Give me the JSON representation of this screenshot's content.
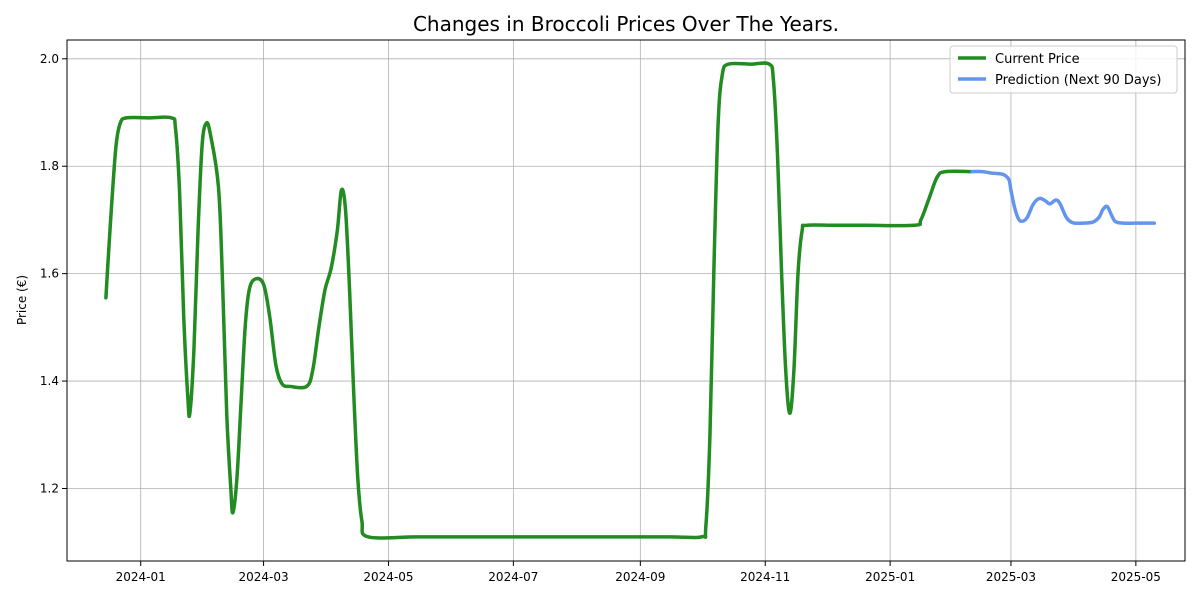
{
  "chart_data": {
    "type": "line",
    "title": "Changes in Broccoli Prices Over The Years.",
    "xlabel": "",
    "ylabel": "Price (€)",
    "xlim": [
      "2023-11-26",
      "2025-05-25"
    ],
    "ylim": [
      1.065,
      2.035
    ],
    "grid": true,
    "legend_position": "top-right",
    "x_ticks": [
      "2024-01",
      "2024-03",
      "2024-05",
      "2024-07",
      "2024-09",
      "2024-11",
      "2025-01",
      "2025-03",
      "2025-05"
    ],
    "y_ticks": [
      "1.2",
      "1.4",
      "1.6",
      "1.8",
      "2.0"
    ],
    "series": [
      {
        "name": "Current Price",
        "color": "#228B22",
        "points": [
          [
            "2023-12-15",
            1.555
          ],
          [
            "2023-12-16",
            1.62
          ],
          [
            "2023-12-18",
            1.74
          ],
          [
            "2023-12-20",
            1.84
          ],
          [
            "2023-12-22",
            1.88
          ],
          [
            "2023-12-25",
            1.89
          ],
          [
            "2024-01-05",
            1.89
          ],
          [
            "2024-01-16",
            1.89
          ],
          [
            "2024-01-18",
            1.87
          ],
          [
            "2024-01-20",
            1.75
          ],
          [
            "2024-01-22",
            1.52
          ],
          [
            "2024-01-24",
            1.37
          ],
          [
            "2024-01-25",
            1.34
          ],
          [
            "2024-01-27",
            1.46
          ],
          [
            "2024-01-29",
            1.68
          ],
          [
            "2024-01-31",
            1.84
          ],
          [
            "2024-02-02",
            1.88
          ],
          [
            "2024-02-04",
            1.86
          ],
          [
            "2024-02-08",
            1.76
          ],
          [
            "2024-02-10",
            1.58
          ],
          [
            "2024-02-12",
            1.34
          ],
          [
            "2024-02-14",
            1.2
          ],
          [
            "2024-02-15",
            1.155
          ],
          [
            "2024-02-17",
            1.22
          ],
          [
            "2024-02-19",
            1.36
          ],
          [
            "2024-02-21",
            1.5
          ],
          [
            "2024-02-23",
            1.57
          ],
          [
            "2024-02-26",
            1.59
          ],
          [
            "2024-03-01",
            1.58
          ],
          [
            "2024-03-04",
            1.52
          ],
          [
            "2024-03-07",
            1.43
          ],
          [
            "2024-03-10",
            1.395
          ],
          [
            "2024-03-14",
            1.39
          ],
          [
            "2024-03-22",
            1.39
          ],
          [
            "2024-03-25",
            1.42
          ],
          [
            "2024-03-28",
            1.5
          ],
          [
            "2024-03-31",
            1.57
          ],
          [
            "2024-04-03",
            1.61
          ],
          [
            "2024-04-06",
            1.68
          ],
          [
            "2024-04-08",
            1.755
          ],
          [
            "2024-04-10",
            1.72
          ],
          [
            "2024-04-12",
            1.57
          ],
          [
            "2024-04-14",
            1.38
          ],
          [
            "2024-04-16",
            1.22
          ],
          [
            "2024-04-18",
            1.14
          ],
          [
            "2024-04-21",
            1.11
          ],
          [
            "2024-05-15",
            1.11
          ],
          [
            "2024-06-15",
            1.11
          ],
          [
            "2024-07-15",
            1.11
          ],
          [
            "2024-08-15",
            1.11
          ],
          [
            "2024-09-15",
            1.11
          ],
          [
            "2024-10-01",
            1.11
          ],
          [
            "2024-10-03",
            1.13
          ],
          [
            "2024-10-05",
            1.3
          ],
          [
            "2024-10-07",
            1.62
          ],
          [
            "2024-10-09",
            1.88
          ],
          [
            "2024-10-11",
            1.97
          ],
          [
            "2024-10-14",
            1.99
          ],
          [
            "2024-10-25",
            1.99
          ],
          [
            "2024-11-03",
            1.99
          ],
          [
            "2024-11-05",
            1.96
          ],
          [
            "2024-11-07",
            1.82
          ],
          [
            "2024-11-09",
            1.6
          ],
          [
            "2024-11-11",
            1.42
          ],
          [
            "2024-11-13",
            1.34
          ],
          [
            "2024-11-15",
            1.42
          ],
          [
            "2024-11-17",
            1.6
          ],
          [
            "2024-11-19",
            1.68
          ],
          [
            "2024-11-21",
            1.69
          ],
          [
            "2024-12-05",
            1.69
          ],
          [
            "2024-12-20",
            1.69
          ],
          [
            "2025-01-13",
            1.69
          ],
          [
            "2025-01-16",
            1.7
          ],
          [
            "2025-01-20",
            1.74
          ],
          [
            "2025-01-24",
            1.78
          ],
          [
            "2025-01-28",
            1.79
          ],
          [
            "2025-02-10",
            1.79
          ]
        ]
      },
      {
        "name": "Prediction (Next 90 Days)",
        "color": "#6495ED",
        "points": [
          [
            "2025-02-10",
            1.79
          ],
          [
            "2025-02-15",
            1.79
          ],
          [
            "2025-02-20",
            1.787
          ],
          [
            "2025-02-25",
            1.785
          ],
          [
            "2025-02-28",
            1.775
          ],
          [
            "2025-03-01",
            1.755
          ],
          [
            "2025-03-03",
            1.72
          ],
          [
            "2025-03-05",
            1.7
          ],
          [
            "2025-03-07",
            1.698
          ],
          [
            "2025-03-09",
            1.705
          ],
          [
            "2025-03-12",
            1.73
          ],
          [
            "2025-03-15",
            1.74
          ],
          [
            "2025-03-18",
            1.735
          ],
          [
            "2025-03-20",
            1.73
          ],
          [
            "2025-03-23",
            1.737
          ],
          [
            "2025-03-25",
            1.73
          ],
          [
            "2025-03-28",
            1.705
          ],
          [
            "2025-03-31",
            1.695
          ],
          [
            "2025-04-05",
            1.694
          ],
          [
            "2025-04-10",
            1.696
          ],
          [
            "2025-04-13",
            1.705
          ],
          [
            "2025-04-15",
            1.72
          ],
          [
            "2025-04-17",
            1.725
          ],
          [
            "2025-04-19",
            1.71
          ],
          [
            "2025-04-21",
            1.697
          ],
          [
            "2025-04-25",
            1.694
          ],
          [
            "2025-05-01",
            1.694
          ],
          [
            "2025-05-10",
            1.694
          ]
        ]
      }
    ]
  }
}
